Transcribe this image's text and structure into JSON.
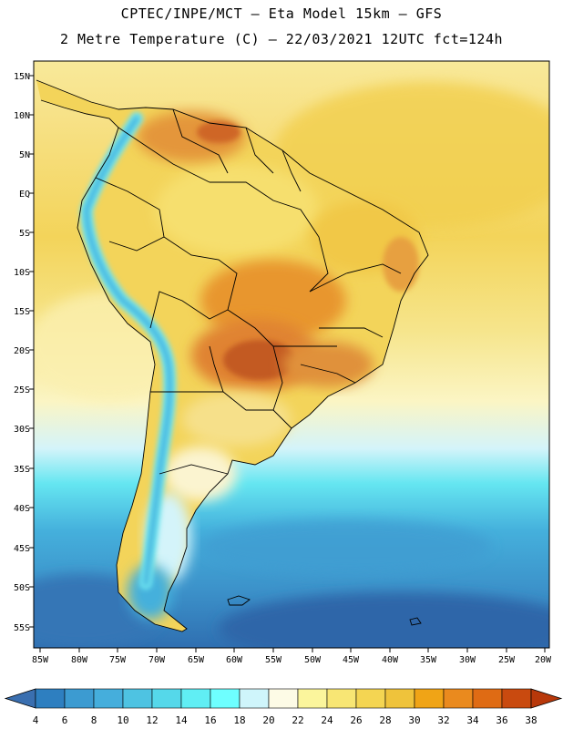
{
  "header": {
    "line1": "CPTEC/INPE/MCT –  Eta Model 15km – GFS",
    "line2": "2 Metre Temperature (C) – 22/03/2021 12UTC fct=124h"
  },
  "map": {
    "lat_labels": [
      "15N",
      "10N",
      "5N",
      "EQ",
      "5S",
      "10S",
      "15S",
      "20S",
      "25S",
      "30S",
      "35S",
      "40S",
      "45S",
      "50S",
      "55S"
    ],
    "lon_labels": [
      "85W",
      "80W",
      "75W",
      "70W",
      "65W",
      "60W",
      "55W",
      "50W",
      "45W",
      "40W",
      "35W",
      "30W",
      "25W",
      "20W"
    ]
  },
  "colorbar": {
    "labels": [
      "4",
      "6",
      "8",
      "10",
      "12",
      "14",
      "16",
      "18",
      "20",
      "22",
      "24",
      "26",
      "28",
      "30",
      "32",
      "34",
      "36",
      "38"
    ],
    "colors": [
      "#3a6fb0",
      "#2e7fc0",
      "#3c9bd1",
      "#45aedc",
      "#4ec3e2",
      "#55d8ea",
      "#60eef4",
      "#6effff",
      "#cff5fb",
      "#fdfbe6",
      "#fbf59c",
      "#f8e674",
      "#f4d552",
      "#efc33b",
      "#f0a416",
      "#ea8a1e",
      "#df6b14",
      "#c94a0f",
      "#b8380a"
    ]
  },
  "legend_palette": {
    "ocean_cold": "#2f6fb1",
    "ocean_mid": "#45b0dc",
    "ocean_light": "#65e6f1",
    "pale": "#d4f4fa",
    "cream": "#fdfae2",
    "yellow": "#f8e880",
    "gold": "#f3d45a",
    "orange": "#e8962e",
    "dark_orange": "#cf6626",
    "red_brown": "#b9471c"
  }
}
